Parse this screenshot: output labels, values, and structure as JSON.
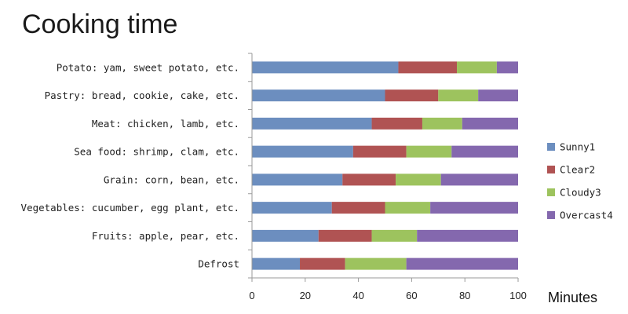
{
  "chart_data": {
    "type": "bar",
    "orientation": "horizontal",
    "stacked": true,
    "title": "Cooking time",
    "xlabel": "Minutes",
    "ylabel": "",
    "xlim": [
      0,
      100
    ],
    "xticks": [
      0,
      20,
      40,
      60,
      80,
      100
    ],
    "grid": false,
    "legend_position": "right",
    "categories": [
      "Potato: yam, sweet potato, etc.",
      "Pastry: bread, cookie, cake, etc.",
      "Meat: chicken, lamb, etc.",
      "Sea food: shrimp, clam, etc.",
      "Grain: corn, bean, etc.",
      "Vegetables: cucumber, egg plant, etc.",
      "Fruits: apple, pear, etc.",
      "Defrost"
    ],
    "series": [
      {
        "name": "Sunny1",
        "color": "#6c8ebf",
        "values": [
          55,
          50,
          45,
          38,
          34,
          30,
          25,
          18
        ]
      },
      {
        "name": "Clear2",
        "color": "#b05353",
        "values": [
          22,
          20,
          19,
          20,
          20,
          20,
          20,
          17
        ]
      },
      {
        "name": "Cloudy3",
        "color": "#9dc35e",
        "values": [
          15,
          15,
          15,
          17,
          17,
          17,
          17,
          23
        ]
      },
      {
        "name": "Overcast4",
        "color": "#8468ae",
        "values": [
          8,
          15,
          21,
          25,
          29,
          33,
          38,
          42
        ]
      }
    ]
  }
}
